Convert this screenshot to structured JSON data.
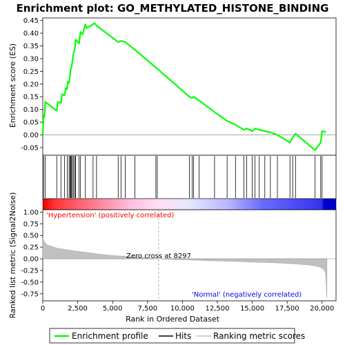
{
  "chart_data": {
    "type": "line",
    "title": "Enrichment plot: GO_METHYLATED_HISTONE_BINDING",
    "es_panel": {
      "ylabel": "Enrichment score (ES)",
      "ylim": [
        -0.08,
        0.46
      ],
      "yticks": [
        -0.05,
        0.0,
        0.05,
        0.1,
        0.15,
        0.2,
        0.25,
        0.3,
        0.35,
        0.4,
        0.45
      ],
      "ytick_labels": [
        "-0.05",
        "0.00",
        "0.05",
        "0.10",
        "0.15",
        "0.20",
        "0.25",
        "0.30",
        "0.35",
        "0.40",
        "0.45"
      ],
      "series": [
        {
          "name": "Enrichment profile",
          "color": "#00ff00",
          "x": [
            0,
            60,
            120,
            180,
            1000,
            1080,
            1300,
            1380,
            1550,
            1650,
            1750,
            1800,
            1880,
            1950,
            2000,
            2060,
            2120,
            2200,
            2300,
            2350,
            2600,
            2700,
            2850,
            3050,
            3150,
            3600,
            3700,
            3850,
            5400,
            5600,
            5900,
            6600,
            8100,
            8200,
            10500,
            10700,
            10800,
            11200,
            12300,
            13200,
            13800,
            14400,
            14600,
            15000,
            15200,
            15500,
            15900,
            16300,
            16800,
            17700,
            17900,
            18100,
            19500,
            19900,
            20000,
            20300
          ],
          "y": [
            0.0,
            0.075,
            0.07,
            0.13,
            0.095,
            0.13,
            0.125,
            0.16,
            0.155,
            0.185,
            0.18,
            0.21,
            0.205,
            0.235,
            0.26,
            0.265,
            0.29,
            0.32,
            0.34,
            0.375,
            0.36,
            0.405,
            0.395,
            0.435,
            0.42,
            0.435,
            0.44,
            0.43,
            0.365,
            0.37,
            0.365,
            0.335,
            0.265,
            0.26,
            0.15,
            0.145,
            0.15,
            0.135,
            0.09,
            0.055,
            0.04,
            0.02,
            0.025,
            0.015,
            0.025,
            0.02,
            0.015,
            0.01,
            0.0,
            -0.03,
            -0.01,
            0.005,
            -0.06,
            -0.03,
            0.015,
            0.01
          ]
        }
      ]
    },
    "hits": {
      "label": "Hits",
      "positions": [
        60,
        180,
        1000,
        1300,
        1550,
        1750,
        1880,
        1950,
        2000,
        2060,
        2120,
        2200,
        2300,
        2350,
        2600,
        2700,
        3050,
        3600,
        3850,
        5400,
        5600,
        5900,
        6600,
        8100,
        8200,
        10500,
        10700,
        10800,
        11200,
        12300,
        13200,
        13800,
        14400,
        14600,
        15000,
        15200,
        15500,
        15900,
        16300,
        16800,
        17700,
        17900,
        18100,
        19500,
        19900,
        20000
      ]
    },
    "rank_panel": {
      "ylabel": "Ranked list metric (Signal2Noise)",
      "xlabel": "Rank in Ordered Dataset",
      "ylim": [
        -0.9,
        1.05
      ],
      "yticks": [
        -0.75,
        -0.5,
        -0.25,
        0.0,
        0.25,
        0.5,
        0.75,
        1.0
      ],
      "ytick_labels": [
        "-0.75",
        "-0.50",
        "-0.25",
        "0.00",
        "0.25",
        "0.50",
        "0.75",
        "1.00"
      ],
      "xlim": [
        0,
        21000
      ],
      "xticks": [
        0,
        2500,
        5000,
        7500,
        10000,
        12500,
        15000,
        17500,
        20000
      ],
      "xtick_labels": [
        "0",
        "2,500",
        "5,000",
        "7,500",
        "10,000",
        "12,500",
        "15,000",
        "17,500",
        "20,000"
      ],
      "metric_x": [
        0,
        50,
        150,
        300,
        600,
        1000,
        2000,
        3000,
        4000,
        5000,
        6000,
        7000,
        8297,
        9000,
        10000,
        11000,
        12000,
        13000,
        14000,
        15000,
        16000,
        17000,
        18000,
        19000,
        19500,
        19900,
        20100,
        20250,
        20350
      ],
      "metric_y": [
        0.45,
        0.4,
        0.35,
        0.3,
        0.27,
        0.23,
        0.18,
        0.14,
        0.1,
        0.07,
        0.05,
        0.03,
        0.0,
        -0.01,
        -0.02,
        -0.03,
        -0.04,
        -0.05,
        -0.06,
        -0.07,
        -0.08,
        -0.09,
        -0.11,
        -0.13,
        -0.15,
        -0.18,
        -0.22,
        -0.3,
        -0.85
      ],
      "zero_cross_rank": 8297,
      "zero_cross_label": "Zero cross at 8297",
      "positive_label": "'Hypertension' (positively correlated)",
      "negative_label": "'Normal' (negatively correlated)",
      "positive_color": "#ff0000",
      "negative_color": "#0000ff"
    },
    "color_bar_stops": [
      {
        "pos": 0,
        "color": "#e60000"
      },
      {
        "pos": 0.04,
        "color": "#ff3333"
      },
      {
        "pos": 0.15,
        "color": "#ff7080"
      },
      {
        "pos": 0.3,
        "color": "#ffc0e0"
      },
      {
        "pos": 0.4,
        "color": "#ffe0f4"
      },
      {
        "pos": 0.5,
        "color": "#e6e6ff"
      },
      {
        "pos": 0.63,
        "color": "#b8b8ff"
      },
      {
        "pos": 0.75,
        "color": "#6a6aff"
      },
      {
        "pos": 0.95,
        "color": "#3333ee"
      },
      {
        "pos": 0.96,
        "color": "#0000cc"
      },
      {
        "pos": 1,
        "color": "#0000cc"
      }
    ],
    "legend": [
      {
        "label": "Enrichment profile",
        "color": "#00ff00",
        "kind": "line"
      },
      {
        "label": "Hits",
        "color": "#000000",
        "kind": "line"
      },
      {
        "label": "Ranking metric scores",
        "color": "#c0c0c0",
        "kind": "line"
      }
    ]
  }
}
